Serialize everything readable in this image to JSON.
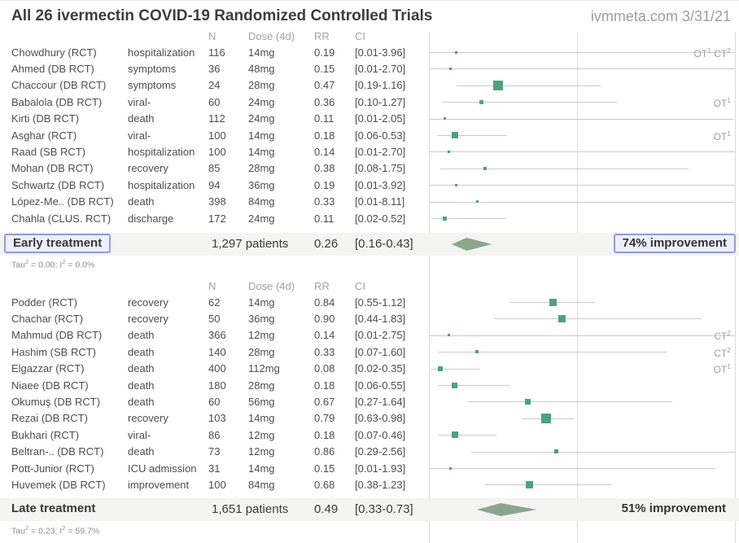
{
  "header": {
    "title": "All 26 ivermectin COVID-19 Randomized Controlled Trials",
    "source": "ivmmeta.com 3/31/21"
  },
  "columns": {
    "n": "N",
    "dose": "Dose (4d)",
    "rr": "RR",
    "ci": "CI"
  },
  "colors": {
    "marker_green": "#4ba37c",
    "diamond_green": "#8ca68b",
    "ci_line": "#c9c9c9",
    "grid_line": "#dadada",
    "highlight_border": "#929ae8",
    "highlight_fill": "#edeffc",
    "band_background": "#f4f4f2",
    "text_dark": "#3d3d3d",
    "text_gray": "#9e9e9e"
  },
  "chart_data": {
    "type": "forest",
    "title": "All 26 ivermectin COVID-19 Randomized Controlled Trials",
    "x_axis": {
      "scale": "linear",
      "measure": "RR",
      "ref_line": 1.0,
      "visible_range": [
        0,
        2.06
      ]
    },
    "legend": "square size = study weight; diamond = pooled estimate",
    "sections": [
      {
        "name": "Early treatment",
        "rows": [
          {
            "study": "Chowdhury (RCT)",
            "outcome": "hospitalization",
            "n": 116,
            "dose": "14mg",
            "rr": 0.19,
            "ci": [
              0.01,
              3.96
            ],
            "marker": 3,
            "flag": "OT¹ CT²"
          },
          {
            "study": "Ahmed (DB RCT)",
            "outcome": "symptoms",
            "n": 36,
            "dose": "48mg",
            "rr": 0.15,
            "ci": [
              0.01,
              2.7
            ],
            "marker": 3,
            "flag": ""
          },
          {
            "study": "Chaccour (DB RCT)",
            "outcome": "symptoms",
            "n": 24,
            "dose": "28mg",
            "rr": 0.47,
            "ci": [
              0.19,
              1.16
            ],
            "marker": 12,
            "flag": ""
          },
          {
            "study": "Babalola (DB RCT)",
            "outcome": "viral-",
            "n": 60,
            "dose": "24mg",
            "rr": 0.36,
            "ci": [
              0.1,
              1.27
            ],
            "marker": 5,
            "flag": "OT¹"
          },
          {
            "study": "Kirti (DB RCT)",
            "outcome": "death",
            "n": 112,
            "dose": "24mg",
            "rr": 0.11,
            "ci": [
              0.01,
              2.05
            ],
            "marker": 3,
            "flag": ""
          },
          {
            "study": "Asghar (RCT)",
            "outcome": "viral-",
            "n": 100,
            "dose": "14mg",
            "rr": 0.18,
            "ci": [
              0.06,
              0.53
            ],
            "marker": 8,
            "flag": "OT¹"
          },
          {
            "study": "Raad (SB RCT)",
            "outcome": "hospitalization",
            "n": 100,
            "dose": "14mg",
            "rr": 0.14,
            "ci": [
              0.01,
              2.7
            ],
            "marker": 3,
            "flag": ""
          },
          {
            "study": "Mohan (DB RCT)",
            "outcome": "recovery",
            "n": 85,
            "dose": "28mg",
            "rr": 0.38,
            "ci": [
              0.08,
              1.75
            ],
            "marker": 4,
            "flag": ""
          },
          {
            "study": "Schwartz (DB RCT)",
            "outcome": "hospitalization",
            "n": 94,
            "dose": "36mg",
            "rr": 0.19,
            "ci": [
              0.01,
              3.92
            ],
            "marker": 3,
            "flag": ""
          },
          {
            "study": "López-Me.. (DB RCT)",
            "outcome": "death",
            "n": 398,
            "dose": "84mg",
            "rr": 0.33,
            "ci": [
              0.01,
              8.11
            ],
            "marker": 3,
            "flag": ""
          },
          {
            "study": "Chahla (CLUS. RCT)",
            "outcome": "discharge",
            "n": 172,
            "dose": "24mg",
            "rr": 0.11,
            "ci": [
              0.02,
              0.52
            ],
            "marker": 5,
            "flag": ""
          }
        ],
        "summary": {
          "label": "Early treatment",
          "patients": "1,297 patients",
          "rr": 0.26,
          "ci": [
            0.16,
            0.43
          ],
          "improvement": "74% improvement",
          "highlighted": true
        },
        "footnote": "Tau² = 0.00; I² = 0.0%"
      },
      {
        "name": "Late treatment",
        "rows": [
          {
            "study": "Podder (RCT)",
            "outcome": "recovery",
            "n": 62,
            "dose": "14mg",
            "rr": 0.84,
            "ci": [
              0.55,
              1.12
            ],
            "marker": 9,
            "flag": ""
          },
          {
            "study": "Chachar (RCT)",
            "outcome": "recovery",
            "n": 50,
            "dose": "36mg",
            "rr": 0.9,
            "ci": [
              0.44,
              1.83
            ],
            "marker": 9,
            "flag": ""
          },
          {
            "study": "Mahmud (DB RCT)",
            "outcome": "death",
            "n": 366,
            "dose": "12mg",
            "rr": 0.14,
            "ci": [
              0.01,
              2.75
            ],
            "marker": 3,
            "flag": "CT²"
          },
          {
            "study": "Hashim (SB RCT)",
            "outcome": "death",
            "n": 140,
            "dose": "28mg",
            "rr": 0.33,
            "ci": [
              0.07,
              1.6
            ],
            "marker": 4,
            "flag": "CT²"
          },
          {
            "study": "Elgazzar (RCT)",
            "outcome": "death",
            "n": 400,
            "dose": "112mg",
            "rr": 0.08,
            "ci": [
              0.02,
              0.35
            ],
            "marker": 6,
            "flag": "OT¹"
          },
          {
            "study": "Niaee (DB RCT)",
            "outcome": "death",
            "n": 180,
            "dose": "28mg",
            "rr": 0.18,
            "ci": [
              0.06,
              0.55
            ],
            "marker": 7,
            "flag": ""
          },
          {
            "study": "Okumuş (DB RCT)",
            "outcome": "death",
            "n": 60,
            "dose": "56mg",
            "rr": 0.67,
            "ci": [
              0.27,
              1.64
            ],
            "marker": 7,
            "flag": ""
          },
          {
            "study": "Rezai (DB RCT)",
            "outcome": "recovery",
            "n": 103,
            "dose": "14mg",
            "rr": 0.79,
            "ci": [
              0.63,
              0.98
            ],
            "marker": 12,
            "flag": ""
          },
          {
            "study": "Bukhari (RCT)",
            "outcome": "viral-",
            "n": 86,
            "dose": "12mg",
            "rr": 0.18,
            "ci": [
              0.07,
              0.46
            ],
            "marker": 8,
            "flag": ""
          },
          {
            "study": "Beltran-.. (DB RCT)",
            "outcome": "death",
            "n": 73,
            "dose": "12mg",
            "rr": 0.86,
            "ci": [
              0.29,
              2.56
            ],
            "marker": 5,
            "flag": ""
          },
          {
            "study": "Pott-Junior (RCT)",
            "outcome": "ICU admission",
            "n": 31,
            "dose": "14mg",
            "rr": 0.15,
            "ci": [
              0.01,
              1.93
            ],
            "marker": 3,
            "flag": ""
          },
          {
            "study": "Huvemek (DB RCT)",
            "outcome": "improvement",
            "n": 100,
            "dose": "84mg",
            "rr": 0.68,
            "ci": [
              0.38,
              1.23
            ],
            "marker": 9,
            "flag": ""
          }
        ],
        "summary": {
          "label": "Late treatment",
          "patients": "1,651 patients",
          "rr": 0.49,
          "ci": [
            0.33,
            0.73
          ],
          "improvement": "51% improvement",
          "highlighted": false
        },
        "footnote": "Tau² = 0.23; I² = 59.7%"
      }
    ]
  }
}
